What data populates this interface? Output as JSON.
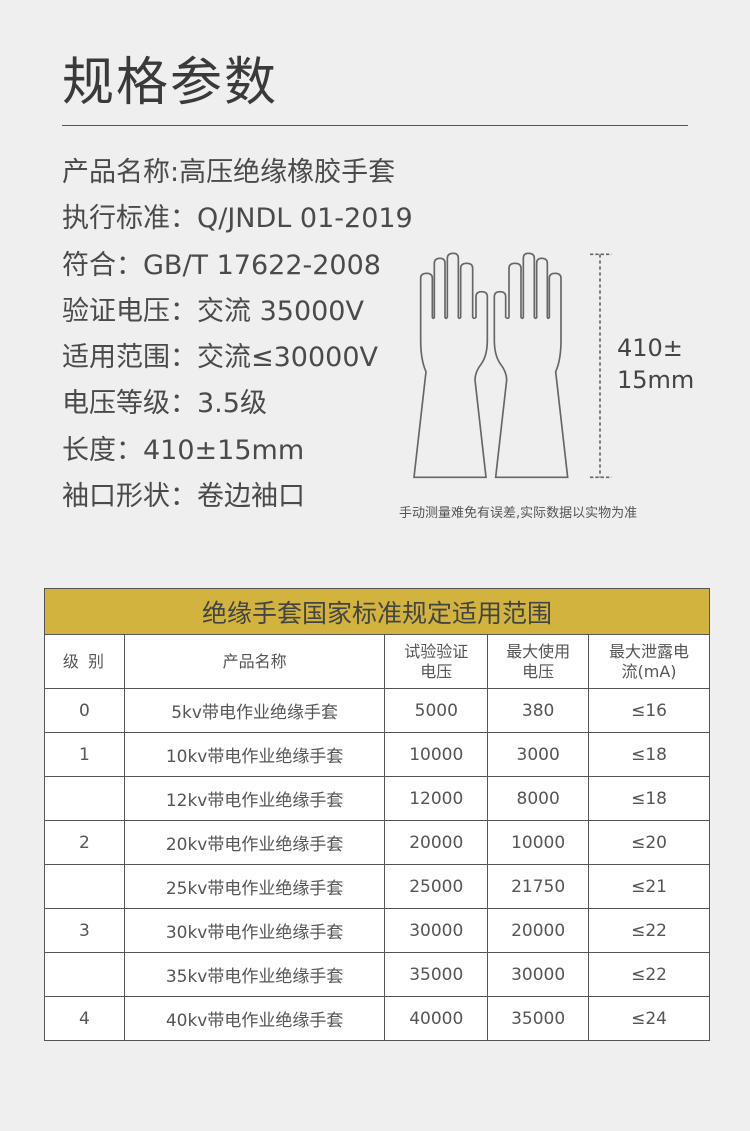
{
  "title": "规格参数",
  "specs": [
    "产品名称:高压绝缘橡胶手套",
    "执行标准：Q/JNDL 01-2019",
    "符合：GB/T 17622-2008",
    "验证电压：交流 35000V",
    "适用范围：交流≤30000V",
    "电压等级：3.5级",
    "长度：410±15mm",
    "袖口形状：卷边袖口"
  ],
  "dimension": {
    "line1": "410±",
    "line2": "15mm"
  },
  "note": "手动测量难免有误差,实际数据以实物为准",
  "table": {
    "title": "绝缘手套国家标准规定适用范围",
    "headers": [
      "级 别",
      "产品名称",
      "试验验证电压",
      "最大使用电压",
      "最大泄露电流(mA)"
    ],
    "rows": [
      [
        "0",
        "5kv带电作业绝缘手套",
        "5000",
        "380",
        "≤16"
      ],
      [
        "1",
        "10kv带电作业绝缘手套",
        "10000",
        "3000",
        "≤18"
      ],
      [
        "",
        "12kv带电作业绝缘手套",
        "12000",
        "8000",
        "≤18"
      ],
      [
        "2",
        "20kv带电作业绝缘手套",
        "20000",
        "10000",
        "≤20"
      ],
      [
        "",
        "25kv带电作业绝缘手套",
        "25000",
        "21750",
        "≤21"
      ],
      [
        "3",
        "30kv带电作业绝缘手套",
        "30000",
        "20000",
        "≤22"
      ],
      [
        "",
        "35kv带电作业绝缘手套",
        "35000",
        "30000",
        "≤22"
      ],
      [
        "4",
        "40kv带电作业绝缘手套",
        "40000",
        "35000",
        "≤24"
      ]
    ]
  },
  "colors": {
    "header_bg": "#d2b33d",
    "background": "#efefef"
  }
}
